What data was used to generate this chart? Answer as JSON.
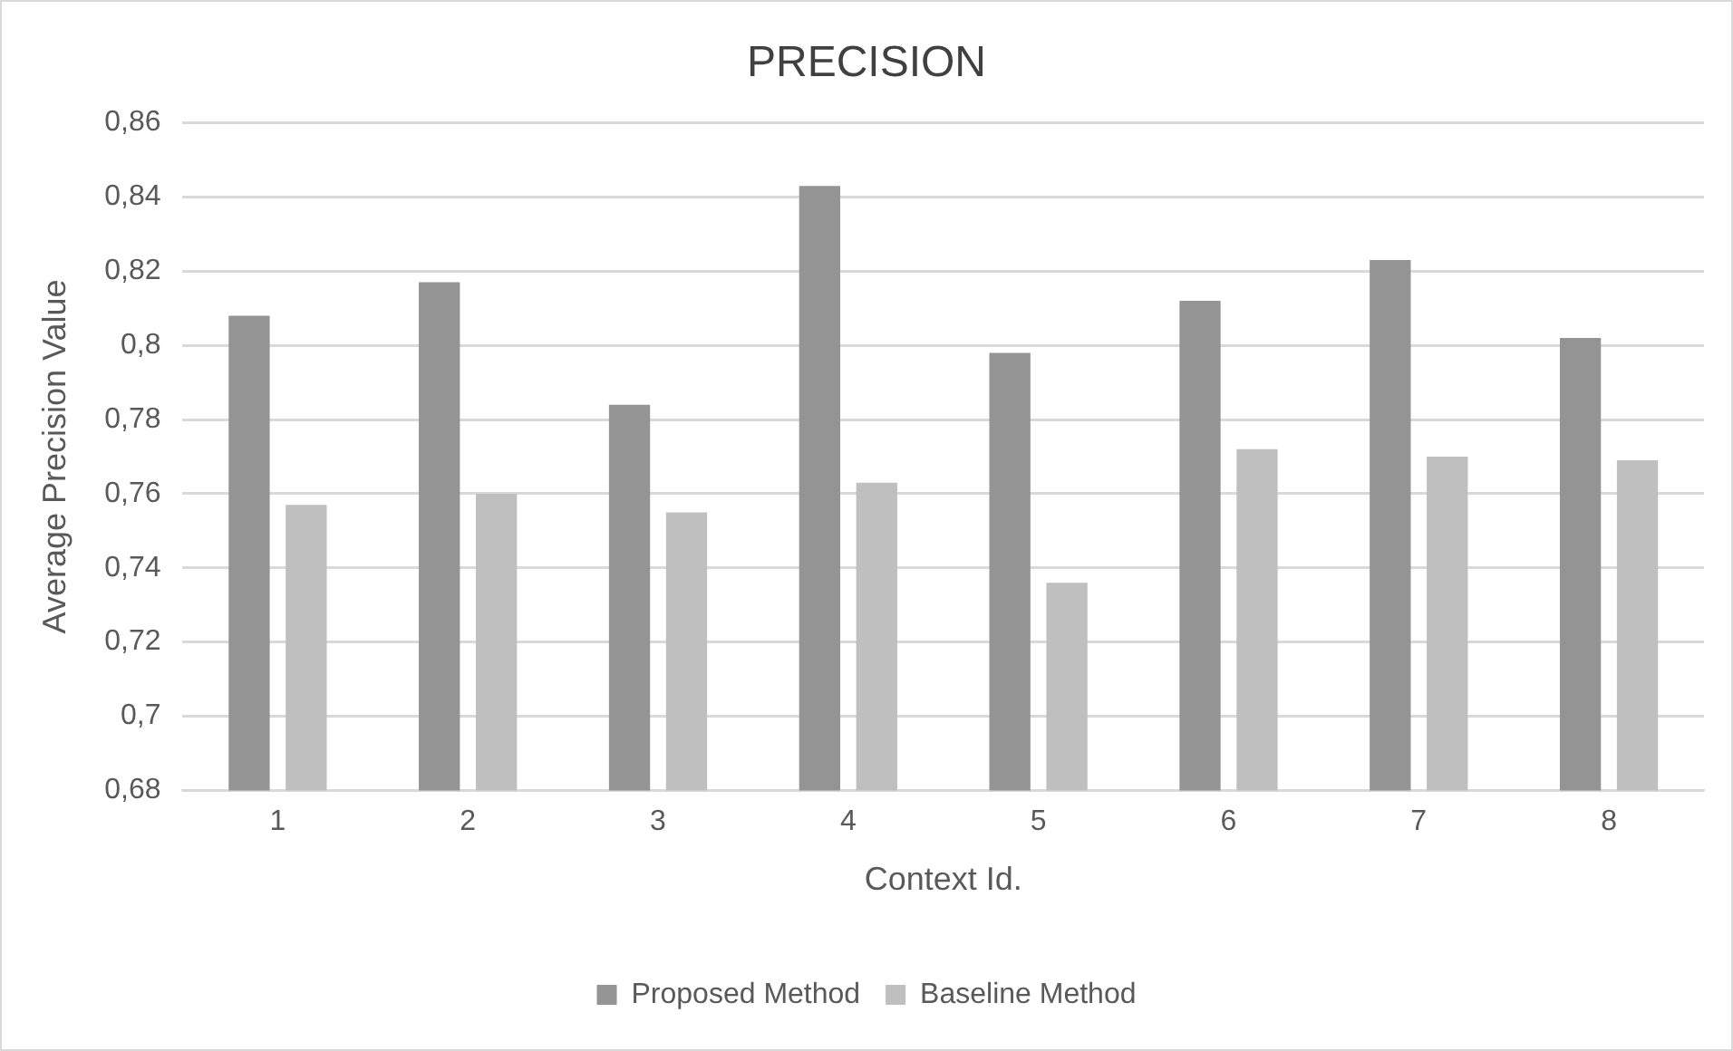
{
  "chart_data": {
    "type": "bar",
    "title": "PRECISION",
    "xlabel": "Context Id.",
    "ylabel": "Average Precision Value",
    "categories": [
      "1",
      "2",
      "3",
      "4",
      "5",
      "6",
      "7",
      "8"
    ],
    "series": [
      {
        "name": "Proposed Method",
        "color": "#949494",
        "values": [
          0.808,
          0.817,
          0.784,
          0.843,
          0.798,
          0.812,
          0.823,
          0.802
        ]
      },
      {
        "name": "Baseline Method",
        "color": "#bfbfbf",
        "values": [
          0.757,
          0.76,
          0.755,
          0.763,
          0.736,
          0.772,
          0.77,
          0.769
        ]
      }
    ],
    "ylim": [
      0.68,
      0.86
    ],
    "yticks": [
      {
        "value": 0.68,
        "label": "0,68"
      },
      {
        "value": 0.7,
        "label": "0,7"
      },
      {
        "value": 0.72,
        "label": "0,72"
      },
      {
        "value": 0.74,
        "label": "0,74"
      },
      {
        "value": 0.76,
        "label": "0,76"
      },
      {
        "value": 0.78,
        "label": "0,78"
      },
      {
        "value": 0.8,
        "label": "0,8"
      },
      {
        "value": 0.82,
        "label": "0,82"
      },
      {
        "value": 0.84,
        "label": "0,84"
      },
      {
        "value": 0.86,
        "label": "0,86"
      }
    ],
    "grid": "y",
    "legend": "bottom"
  }
}
